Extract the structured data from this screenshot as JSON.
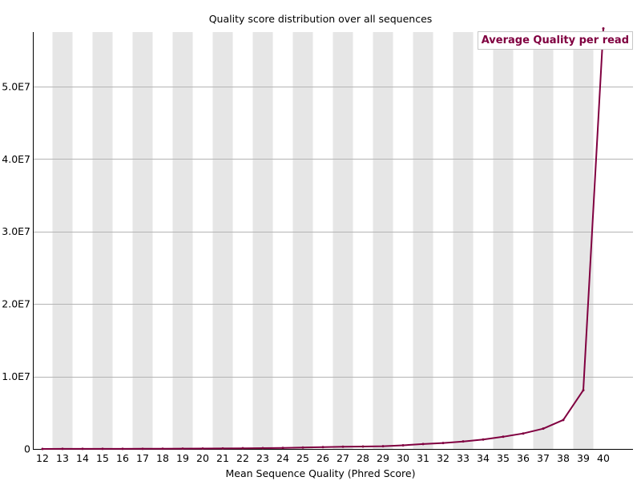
{
  "chart_data": {
    "type": "line",
    "title": "Quality score distribution over all sequences",
    "xlabel": "Mean Sequence Quality (Phred Score)",
    "ylabel": "",
    "legend": {
      "label": "Average Quality per read",
      "placement": "top-right",
      "color": "#800040"
    },
    "x": [
      12,
      13,
      14,
      15,
      16,
      17,
      18,
      19,
      20,
      21,
      22,
      23,
      24,
      25,
      26,
      27,
      28,
      29,
      30,
      31,
      32,
      33,
      34,
      35,
      36,
      37,
      38,
      39,
      40
    ],
    "series": [
      {
        "name": "Average Quality per read",
        "color": "#800040",
        "values": [
          5000,
          8000,
          10000,
          12000,
          15000,
          20000,
          30000,
          40000,
          50000,
          70000,
          90000,
          110000,
          140000,
          200000,
          250000,
          300000,
          330000,
          380000,
          500000,
          680000,
          820000,
          1030000,
          1300000,
          1680000,
          2130000,
          2800000,
          4000000,
          8100000,
          58000000
        ]
      }
    ],
    "ylim": [
      0,
      57500000
    ],
    "yticks": [
      0,
      10000000,
      20000000,
      30000000,
      40000000,
      50000000
    ],
    "ytick_labels": [
      "0",
      "1.0E7",
      "2.0E7",
      "3.0E7",
      "4.0E7",
      "5.0E7"
    ],
    "grid": true,
    "colors": {
      "stripe": "#e6e6e6",
      "gridline": "#b4b4b4",
      "line": "#800040"
    }
  }
}
